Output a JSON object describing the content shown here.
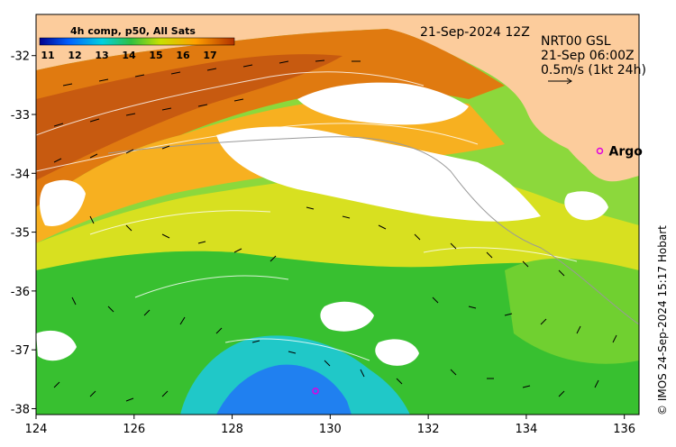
{
  "map": {
    "lon_range": [
      124,
      136.3
    ],
    "lat_range": [
      -38.1,
      -31.3
    ],
    "lon_ticks": [
      "124",
      "126",
      "128",
      "130",
      "132",
      "134",
      "136"
    ],
    "lat_ticks": [
      "-32",
      "-33",
      "-34",
      "-35",
      "-36",
      "-37",
      "-38"
    ],
    "land_color": "#fccc9c",
    "cloud_color": "#ffffff"
  },
  "colorbar": {
    "title": "4h comp, p50, All Sats",
    "labels": [
      "11",
      "12",
      "13",
      "14",
      "15",
      "16",
      "17"
    ],
    "range": [
      10.7,
      17.9
    ],
    "colors": [
      "#00008f",
      "#0060ff",
      "#00d0e0",
      "#30c040",
      "#c8e000",
      "#ffa000",
      "#b03000"
    ]
  },
  "header": {
    "date": "21-Sep-2024 12Z",
    "product": "NRT00 GSL",
    "time": "21-Sep 06:00Z",
    "scale": "0.5m/s (1kt 24h)"
  },
  "markers": [
    {
      "label": "Argo",
      "lon": 135.5,
      "lat": -33.62
    },
    {
      "label": "",
      "lon": 129.7,
      "lat": -37.7
    }
  ],
  "credit": "© IMOS 24-Sep-2024 15:17 Hobart"
}
